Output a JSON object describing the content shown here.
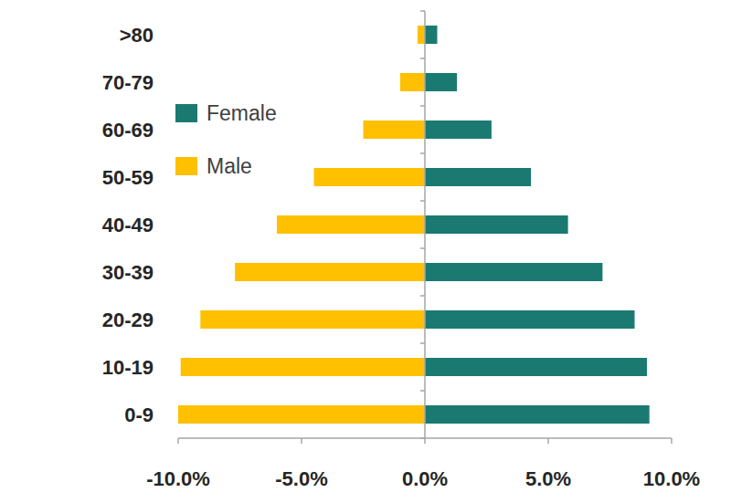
{
  "chart_data": {
    "type": "bar",
    "orientation": "horizontal",
    "categories": [
      "0-9",
      "10-19",
      "20-29",
      "30-39",
      "40-49",
      "50-59",
      "60-69",
      "70-79",
      ">80"
    ],
    "series": [
      {
        "name": "Female",
        "color": "#1a7a72",
        "values": [
          9.1,
          9.0,
          8.5,
          7.2,
          5.8,
          4.3,
          2.7,
          1.3,
          0.5
        ]
      },
      {
        "name": "Male",
        "color": "#ffc000",
        "values": [
          -10.0,
          -9.9,
          -9.1,
          -7.7,
          -6.0,
          -4.5,
          -2.5,
          -1.0,
          -0.3
        ]
      }
    ],
    "xlim": [
      -10,
      10
    ],
    "xticks": [
      {
        "value": -10,
        "label": "-10.0%"
      },
      {
        "value": -5,
        "label": "-5.0%"
      },
      {
        "value": 0,
        "label": "0.0%"
      },
      {
        "value": 5,
        "label": "5.0%"
      },
      {
        "value": 10,
        "label": "10.0%"
      }
    ],
    "grid": false,
    "legend": "upper left"
  }
}
